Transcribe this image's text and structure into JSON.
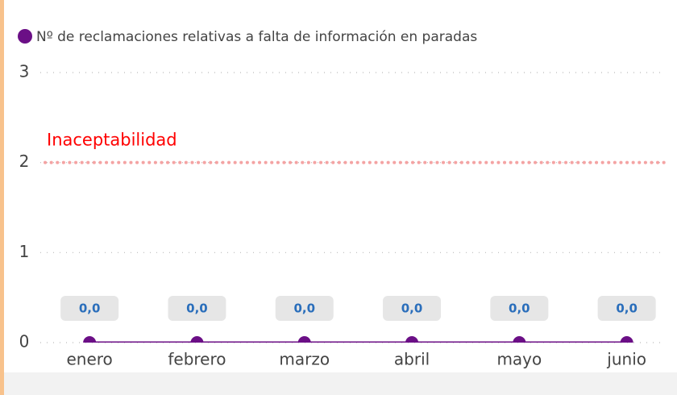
{
  "chart_data": {
    "type": "line",
    "categories": [
      "enero",
      "febrero",
      "marzo",
      "abril",
      "mayo",
      "junio"
    ],
    "series": [
      {
        "name": "Nº de reclamaciones relativas a falta de información en paradas",
        "color": "#6b0f86",
        "values": [
          0,
          0,
          0,
          0,
          0,
          0
        ],
        "value_labels": [
          "0,0",
          "0,0",
          "0,0",
          "0,0",
          "0,0",
          "0,0"
        ]
      }
    ],
    "ylim": [
      0,
      3
    ],
    "yticks": [
      0,
      1,
      2,
      3
    ],
    "grid": true,
    "legend": "top-left",
    "reference_line": {
      "value": 2,
      "label": "Inaceptabilidad",
      "color": "#f4a3a3",
      "label_color": "#ff0000"
    }
  }
}
